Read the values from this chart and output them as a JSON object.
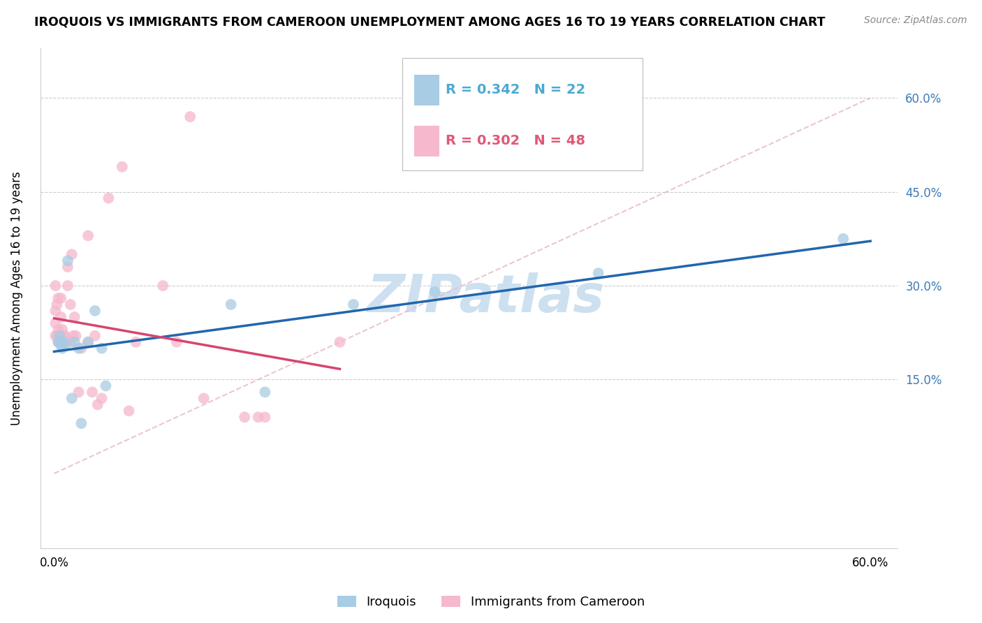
{
  "title": "IROQUOIS VS IMMIGRANTS FROM CAMEROON UNEMPLOYMENT AMONG AGES 16 TO 19 YEARS CORRELATION CHART",
  "source": "Source: ZipAtlas.com",
  "ylabel": "Unemployment Among Ages 16 to 19 years",
  "blue_label": "Iroquois",
  "pink_label": "Immigrants from Cameroon",
  "legend_r_blue": "R = 0.342",
  "legend_n_blue": "N = 22",
  "legend_r_pink": "R = 0.302",
  "legend_n_pink": "N = 48",
  "blue_scatter_color": "#a8cce4",
  "pink_scatter_color": "#f5b8cc",
  "blue_line_color": "#2166ac",
  "pink_line_color": "#d6456e",
  "diag_line_color": "#e8c0cc",
  "watermark_color": "#cce0f0",
  "legend_text_blue": "#4baad3",
  "legend_text_pink": "#e05878",
  "xlim": [
    -1,
    62
  ],
  "ylim": [
    -12,
    68
  ],
  "xticks": [
    0,
    10,
    20,
    30,
    40,
    50,
    60
  ],
  "xtick_labels": [
    "0.0%",
    "",
    "",
    "",
    "",
    "",
    "60.0%"
  ],
  "yticks": [
    15,
    30,
    45,
    60
  ],
  "ytick_right_labels": [
    "15.0%",
    "30.0%",
    "45.0%",
    "60.0%"
  ],
  "iroquois_x": [
    0.3,
    0.4,
    0.5,
    0.5,
    0.6,
    0.7,
    0.8,
    1.0,
    1.3,
    1.5,
    1.8,
    2.0,
    2.5,
    3.0,
    3.5,
    3.8,
    13,
    15.5,
    22,
    28,
    40,
    58
  ],
  "iroquois_y": [
    21,
    22,
    20.5,
    21,
    20,
    21,
    20.5,
    34,
    12,
    21,
    20,
    8,
    21,
    26,
    20,
    14,
    27,
    13,
    27,
    29,
    32,
    37.5
  ],
  "cameroon_x": [
    0.1,
    0.1,
    0.1,
    0.1,
    0.2,
    0.2,
    0.3,
    0.3,
    0.3,
    0.4,
    0.4,
    0.5,
    0.5,
    0.5,
    0.6,
    0.6,
    0.7,
    0.7,
    0.8,
    0.8,
    1.0,
    1.0,
    1.2,
    1.2,
    1.3,
    1.4,
    1.5,
    1.6,
    1.8,
    2.0,
    2.5,
    2.5,
    2.8,
    3.0,
    3.2,
    3.5,
    4.0,
    5.0,
    5.5,
    6.0,
    8.0,
    9.0,
    10.0,
    11.0,
    14.0,
    15.0,
    15.5,
    21.0
  ],
  "cameroon_y": [
    22,
    24,
    26,
    30,
    22,
    27,
    21,
    23,
    28,
    21,
    22,
    21,
    25,
    28,
    21,
    23,
    21,
    22,
    22,
    21,
    30,
    33,
    21,
    27,
    35,
    22,
    25,
    22,
    13,
    20,
    38,
    21,
    13,
    22,
    11,
    12,
    44,
    49,
    10,
    21,
    30,
    21,
    57,
    12,
    9,
    9,
    9,
    21
  ]
}
